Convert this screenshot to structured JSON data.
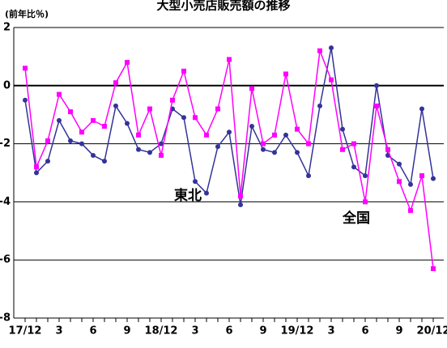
{
  "chart_data": {
    "type": "line",
    "title": "大型小売店販売額の推移",
    "y_label": "(前年比％)",
    "categories": [
      "17/12",
      null,
      null,
      "3",
      null,
      null,
      "6",
      null,
      null,
      "9",
      null,
      null,
      "18/12",
      null,
      null,
      "3",
      null,
      null,
      "6",
      null,
      null,
      "9",
      null,
      null,
      "19/12",
      null,
      null,
      "3",
      null,
      null,
      "6",
      null,
      null,
      "9",
      null,
      null,
      "20/12"
    ],
    "series": [
      {
        "name": "東北",
        "color": "#333399",
        "marker": "circle",
        "values": [
          -0.5,
          -3.0,
          -2.6,
          -1.2,
          -1.9,
          -2.0,
          -2.4,
          -2.6,
          -0.7,
          -1.3,
          -2.2,
          -2.3,
          -2.0,
          -0.8,
          -1.1,
          -3.3,
          -3.7,
          -2.1,
          -1.6,
          -4.1,
          -1.4,
          -2.2,
          -2.3,
          -1.7,
          -2.3,
          -3.1,
          -0.7,
          1.3,
          -1.5,
          -2.8,
          -3.1,
          0.0,
          -2.4,
          -2.7,
          -3.4,
          -0.8,
          -3.2
        ]
      },
      {
        "name": "全国",
        "color": "#ff00ff",
        "marker": "square",
        "values": [
          0.6,
          -2.8,
          -1.9,
          -0.3,
          -0.9,
          -1.6,
          -1.2,
          -1.4,
          0.1,
          0.8,
          -1.7,
          -0.8,
          -2.4,
          -0.5,
          0.5,
          -1.1,
          -1.7,
          -0.8,
          0.9,
          -3.8,
          -0.1,
          -2.0,
          -1.7,
          0.4,
          -1.5,
          -2.0,
          1.2,
          0.2,
          -2.2,
          -2.0,
          -4.0,
          -0.7,
          -2.2,
          -3.3,
          -4.3,
          -3.1,
          -6.3
        ]
      }
    ],
    "ylim": [
      -8,
      2
    ],
    "yticks": [
      -8,
      -6,
      -4,
      -2,
      0,
      2
    ],
    "grid": true
  }
}
